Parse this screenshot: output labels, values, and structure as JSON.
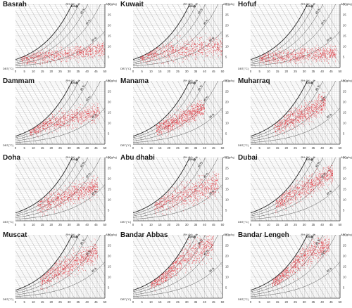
{
  "chart_data": [
    {
      "type": "scatter",
      "title": "Basrah",
      "xlabel": "DBT(°C)",
      "ylabel": "AH (g/kg)",
      "rh_label": "RH (%)",
      "xticks": [
        0,
        5,
        10,
        15,
        20,
        25,
        30,
        35,
        40,
        45,
        50
      ],
      "yticks": [
        0,
        5,
        10,
        15,
        20,
        25,
        30
      ],
      "xlim": [
        0,
        50
      ],
      "ylim": [
        0,
        30
      ],
      "rh_curves": [
        100,
        80,
        60,
        40,
        20
      ],
      "rh_labels": [
        "100 %",
        "80 %",
        "60 %",
        "40 %",
        "20 %"
      ],
      "marker_color": "#e0202a",
      "cloud": {
        "x_range": [
          3,
          50
        ],
        "y_center": "3–8",
        "y_spread": 3.5,
        "n": 900
      }
    },
    {
      "type": "scatter",
      "title": "Kuwait",
      "xlabel": "DBT(°C)",
      "ylabel": "AH (g/kg)",
      "rh_label": "RH (%)",
      "xticks": [
        0,
        5,
        10,
        15,
        20,
        25,
        30,
        35,
        40,
        45,
        50
      ],
      "yticks": [
        0,
        5,
        10,
        15,
        20,
        25,
        30
      ],
      "xlim": [
        0,
        50
      ],
      "ylim": [
        0,
        30
      ],
      "rh_curves": [
        100,
        80,
        60,
        40,
        20
      ],
      "rh_labels": [
        "100 %",
        "80 %",
        "60 %",
        "40 %",
        "20 %"
      ],
      "marker_color": "#e0202a",
      "cloud": {
        "x_range": [
          4,
          50
        ],
        "y_center": "6–12",
        "y_spread": 5,
        "n": 900
      }
    },
    {
      "type": "scatter",
      "title": "Hofuf",
      "xlabel": "DBT(°C)",
      "ylabel": "AH (g/kg)",
      "rh_label": "RH (%)",
      "xticks": [
        0,
        5,
        10,
        15,
        20,
        25,
        30,
        35,
        40,
        45,
        50
      ],
      "yticks": [
        0,
        5,
        10,
        15,
        20,
        25,
        30
      ],
      "xlim": [
        0,
        50
      ],
      "ylim": [
        0,
        30
      ],
      "rh_curves": [
        100,
        80,
        60,
        40,
        20
      ],
      "rh_labels": [
        "100 %",
        "80 %",
        "60 %",
        "40 %",
        "20 %"
      ],
      "marker_color": "#e0202a",
      "cloud": {
        "x_range": [
          5,
          48
        ],
        "y_center": "4–8",
        "y_spread": 3.5,
        "n": 900
      }
    },
    {
      "type": "scatter",
      "title": "Dammam",
      "xlabel": "DBT(°C)",
      "ylabel": "AH (g/kg)",
      "rh_label": "RH (%)",
      "xticks": [
        0,
        5,
        10,
        15,
        20,
        25,
        30,
        35,
        40,
        45,
        50
      ],
      "yticks": [
        0,
        5,
        10,
        15,
        20,
        25,
        30
      ],
      "xlim": [
        0,
        50
      ],
      "ylim": [
        0,
        30
      ],
      "rh_curves": [
        100,
        80,
        60,
        40,
        20
      ],
      "rh_labels": [
        "100 %",
        "80 %",
        "60 %",
        "40 %",
        "20 %"
      ],
      "marker_color": "#e0202a",
      "cloud": {
        "x_range": [
          8,
          47
        ],
        "y_center": "7–15",
        "y_spread": 4,
        "n": 900
      }
    },
    {
      "type": "scatter",
      "title": "Manama",
      "xlabel": "DBT(°C)",
      "ylabel": "AH (g/kg)",
      "rh_label": "RH (%)",
      "xticks": [
        0,
        5,
        10,
        15,
        20,
        25,
        30,
        35,
        40,
        45,
        50
      ],
      "yticks": [
        0,
        5,
        10,
        15,
        20,
        25,
        30
      ],
      "xlim": [
        0,
        50
      ],
      "ylim": [
        0,
        30
      ],
      "rh_curves": [
        100,
        80,
        60,
        40,
        20
      ],
      "rh_labels": [
        "100 %",
        "80 %",
        "60 %",
        "40 %",
        "20 %"
      ],
      "marker_color": "#e0202a",
      "cloud": {
        "x_range": [
          13,
          40
        ],
        "y_center": "8–18",
        "y_spread": 4,
        "n": 900
      }
    },
    {
      "type": "scatter",
      "title": "Muharraq",
      "xlabel": "DBT(°C)",
      "ylabel": "AH (g/kg)",
      "rh_label": "RH (%)",
      "xticks": [
        0,
        5,
        10,
        15,
        20,
        25,
        30,
        35,
        40,
        45,
        50
      ],
      "yticks": [
        0,
        5,
        10,
        15,
        20,
        25,
        30
      ],
      "xlim": [
        0,
        50
      ],
      "ylim": [
        0,
        30
      ],
      "rh_curves": [
        100,
        80,
        60,
        40,
        20
      ],
      "rh_labels": [
        "100 %",
        "80 %",
        "60 %",
        "40 %",
        "20 %"
      ],
      "marker_color": "#e0202a",
      "cloud": {
        "x_range": [
          13,
          42
        ],
        "y_center": "8–20",
        "y_spread": 4.5,
        "n": 900
      }
    },
    {
      "type": "scatter",
      "title": "Doha",
      "xlabel": "DBT(°C)",
      "ylabel": "AH (g/kg)",
      "rh_label": "RH (%)",
      "xticks": [
        0,
        5,
        10,
        15,
        20,
        25,
        30,
        35,
        40,
        45,
        50
      ],
      "yticks": [
        0,
        5,
        10,
        15,
        20,
        25,
        30
      ],
      "xlim": [
        0,
        50
      ],
      "ylim": [
        0,
        30
      ],
      "rh_curves": [
        100,
        80,
        60,
        40,
        20
      ],
      "rh_labels": [
        "100 %",
        "80 %",
        "60 %",
        "40 %",
        "20 %"
      ],
      "marker_color": "#e0202a",
      "cloud": {
        "x_range": [
          12,
          46
        ],
        "y_center": "8–17",
        "y_spread": 4.5,
        "n": 900
      }
    },
    {
      "type": "scatter",
      "title": "Abu dhabi",
      "xlabel": "DBT(°C)",
      "ylabel": "AH (g/kg)",
      "rh_label": "RH (%)",
      "xticks": [
        0,
        5,
        10,
        15,
        20,
        25,
        30,
        35,
        40,
        45,
        50
      ],
      "yticks": [
        0,
        5,
        10,
        15,
        20,
        25,
        30
      ],
      "xlim": [
        0,
        50
      ],
      "ylim": [
        0,
        30
      ],
      "rh_curves": [
        100,
        80,
        60,
        40,
        20
      ],
      "rh_labels": [
        "100 %",
        "80 %",
        "60 %",
        "40 %",
        "20 %"
      ],
      "marker_color": "#e0202a",
      "cloud": {
        "x_range": [
          12,
          48
        ],
        "y_center": "7–17",
        "y_spread": 5.5,
        "n": 900
      }
    },
    {
      "type": "scatter",
      "title": "Dubai",
      "xlabel": "DBT(°C)",
      "ylabel": "AH (g/kg)",
      "rh_label": "RH (%)",
      "xticks": [
        0,
        5,
        10,
        15,
        20,
        25,
        30,
        35,
        40,
        45,
        50
      ],
      "yticks": [
        0,
        5,
        10,
        15,
        20,
        25,
        30
      ],
      "xlim": [
        0,
        50
      ],
      "ylim": [
        0,
        30
      ],
      "rh_curves": [
        100,
        80,
        60,
        40,
        20
      ],
      "rh_labels": [
        "100 %",
        "80 %",
        "60 %",
        "40 %",
        "20 %"
      ],
      "marker_color": "#e0202a",
      "cloud": {
        "x_range": [
          14,
          46
        ],
        "y_center": "9–21",
        "y_spread": 4.5,
        "n": 900
      }
    },
    {
      "type": "scatter",
      "title": "Muscat",
      "xlabel": "DBT(°C)",
      "ylabel": "AH (g/kg)",
      "rh_label": "RH (%)",
      "xticks": [
        0,
        5,
        10,
        15,
        20,
        25,
        30,
        35,
        40,
        45,
        50
      ],
      "yticks": [
        0,
        5,
        10,
        15,
        20,
        25,
        30
      ],
      "xlim": [
        0,
        50
      ],
      "ylim": [
        0,
        30
      ],
      "rh_curves": [
        100,
        80,
        60,
        40,
        20
      ],
      "rh_labels": [
        "100 %",
        "80 %",
        "60 %",
        "40 %",
        "20 %"
      ],
      "marker_color": "#e0202a",
      "cloud": {
        "x_range": [
          14,
          46
        ],
        "y_center": "9–20",
        "y_spread": 5,
        "n": 900
      }
    },
    {
      "type": "scatter",
      "title": "Bandar Abbas",
      "xlabel": "DBT(°C)",
      "ylabel": "AH (g/kg)",
      "rh_label": "RH (%)",
      "xticks": [
        0,
        5,
        10,
        15,
        20,
        25,
        30,
        35,
        40,
        45,
        50
      ],
      "yticks": [
        0,
        5,
        10,
        15,
        20,
        25,
        30
      ],
      "xlim": [
        0,
        50
      ],
      "ylim": [
        0,
        30
      ],
      "rh_curves": [
        100,
        80,
        60,
        40,
        20
      ],
      "rh_labels": [
        "100 %",
        "80 %",
        "60 %",
        "40 %",
        "20 %"
      ],
      "marker_color": "#e0202a",
      "cloud": {
        "x_range": [
          10,
          45
        ],
        "y_center": "6–24",
        "y_spread": 6,
        "n": 950
      }
    },
    {
      "type": "scatter",
      "title": "Bandar Lengeh",
      "xlabel": "DBT(°C)",
      "ylabel": "AH (g/kg)",
      "rh_label": "RH (%)",
      "xticks": [
        0,
        5,
        10,
        15,
        20,
        25,
        30,
        35,
        40,
        45,
        50
      ],
      "yticks": [
        0,
        5,
        10,
        15,
        20,
        25,
        30
      ],
      "xlim": [
        0,
        50
      ],
      "ylim": [
        0,
        30
      ],
      "rh_curves": [
        100,
        80,
        60,
        40,
        20
      ],
      "rh_labels": [
        "100 %",
        "80 %",
        "60 %",
        "40 %",
        "20 %"
      ],
      "marker_color": "#e0202a",
      "cloud": {
        "x_range": [
          12,
          44
        ],
        "y_center": "8–24",
        "y_spread": 5.5,
        "n": 950
      }
    }
  ]
}
